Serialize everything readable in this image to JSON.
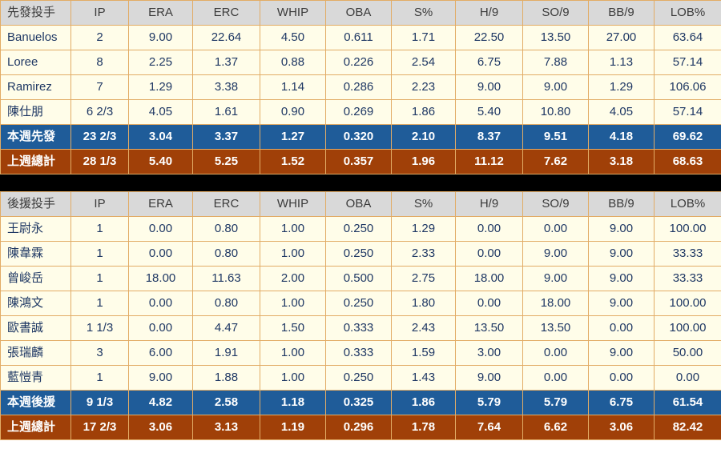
{
  "colors": {
    "header_bg": "#D9D9D9",
    "header_text": "#3B3B3B",
    "row_bg": "#FFFDE9",
    "row_text": "#1F3864",
    "border": "#E2AC66",
    "current_week_bg": "#1F5C99",
    "previous_week_bg": "#A04008",
    "summary_text": "#FFFFFF",
    "separator": "#000000"
  },
  "chart_data": [
    {
      "type": "table",
      "title": "先發投手",
      "headers": [
        "先發投手",
        "IP",
        "ERA",
        "ERC",
        "WHIP",
        "OBA",
        "S%",
        "H/9",
        "SO/9",
        "BB/9",
        "LOB%"
      ],
      "rows": [
        {
          "type": "data",
          "name": "Banuelos",
          "values": [
            "2",
            "9.00",
            "22.64",
            "4.50",
            "0.611",
            "1.71",
            "22.50",
            "13.50",
            "27.00",
            "63.64"
          ]
        },
        {
          "type": "data",
          "name": "Loree",
          "values": [
            "8",
            "2.25",
            "1.37",
            "0.88",
            "0.226",
            "2.54",
            "6.75",
            "7.88",
            "1.13",
            "57.14"
          ]
        },
        {
          "type": "data",
          "name": "Ramirez",
          "values": [
            "7",
            "1.29",
            "3.38",
            "1.14",
            "0.286",
            "2.23",
            "9.00",
            "9.00",
            "1.29",
            "106.06"
          ]
        },
        {
          "type": "data",
          "name": "陳仕朋",
          "values": [
            "6 2/3",
            "4.05",
            "1.61",
            "0.90",
            "0.269",
            "1.86",
            "5.40",
            "10.80",
            "4.05",
            "57.14"
          ]
        },
        {
          "type": "current",
          "name": "本週先發",
          "values": [
            "23 2/3",
            "3.04",
            "3.37",
            "1.27",
            "0.320",
            "2.10",
            "8.37",
            "9.51",
            "4.18",
            "69.62"
          ]
        },
        {
          "type": "previous",
          "name": "上週總計",
          "values": [
            "28 1/3",
            "5.40",
            "5.25",
            "1.52",
            "0.357",
            "1.96",
            "11.12",
            "7.62",
            "3.18",
            "68.63"
          ]
        }
      ]
    },
    {
      "type": "table",
      "title": "後援投手",
      "headers": [
        "後援投手",
        "IP",
        "ERA",
        "ERC",
        "WHIP",
        "OBA",
        "S%",
        "H/9",
        "SO/9",
        "BB/9",
        "LOB%"
      ],
      "rows": [
        {
          "type": "data",
          "name": "王尉永",
          "values": [
            "1",
            "0.00",
            "0.80",
            "1.00",
            "0.250",
            "1.29",
            "0.00",
            "0.00",
            "9.00",
            "100.00"
          ]
        },
        {
          "type": "data",
          "name": "陳韋霖",
          "values": [
            "1",
            "0.00",
            "0.80",
            "1.00",
            "0.250",
            "2.33",
            "0.00",
            "9.00",
            "9.00",
            "33.33"
          ]
        },
        {
          "type": "data",
          "name": "曾峻岳",
          "values": [
            "1",
            "18.00",
            "11.63",
            "2.00",
            "0.500",
            "2.75",
            "18.00",
            "9.00",
            "9.00",
            "33.33"
          ]
        },
        {
          "type": "data",
          "name": "陳鴻文",
          "values": [
            "1",
            "0.00",
            "0.80",
            "1.00",
            "0.250",
            "1.80",
            "0.00",
            "18.00",
            "9.00",
            "100.00"
          ]
        },
        {
          "type": "data",
          "name": "歐書誠",
          "values": [
            "1 1/3",
            "0.00",
            "4.47",
            "1.50",
            "0.333",
            "2.43",
            "13.50",
            "13.50",
            "0.00",
            "100.00"
          ]
        },
        {
          "type": "data",
          "name": "張瑞麟",
          "values": [
            "3",
            "6.00",
            "1.91",
            "1.00",
            "0.333",
            "1.59",
            "3.00",
            "0.00",
            "9.00",
            "50.00"
          ]
        },
        {
          "type": "data",
          "name": "藍愷青",
          "values": [
            "1",
            "9.00",
            "1.88",
            "1.00",
            "0.250",
            "1.43",
            "9.00",
            "0.00",
            "0.00",
            "0.00"
          ]
        },
        {
          "type": "current",
          "name": "本週後援",
          "values": [
            "9 1/3",
            "4.82",
            "2.58",
            "1.18",
            "0.325",
            "1.86",
            "5.79",
            "5.79",
            "6.75",
            "61.54"
          ]
        },
        {
          "type": "previous",
          "name": "上週總計",
          "values": [
            "17 2/3",
            "3.06",
            "3.13",
            "1.19",
            "0.296",
            "1.78",
            "7.64",
            "6.62",
            "3.06",
            "82.42"
          ]
        }
      ]
    }
  ]
}
